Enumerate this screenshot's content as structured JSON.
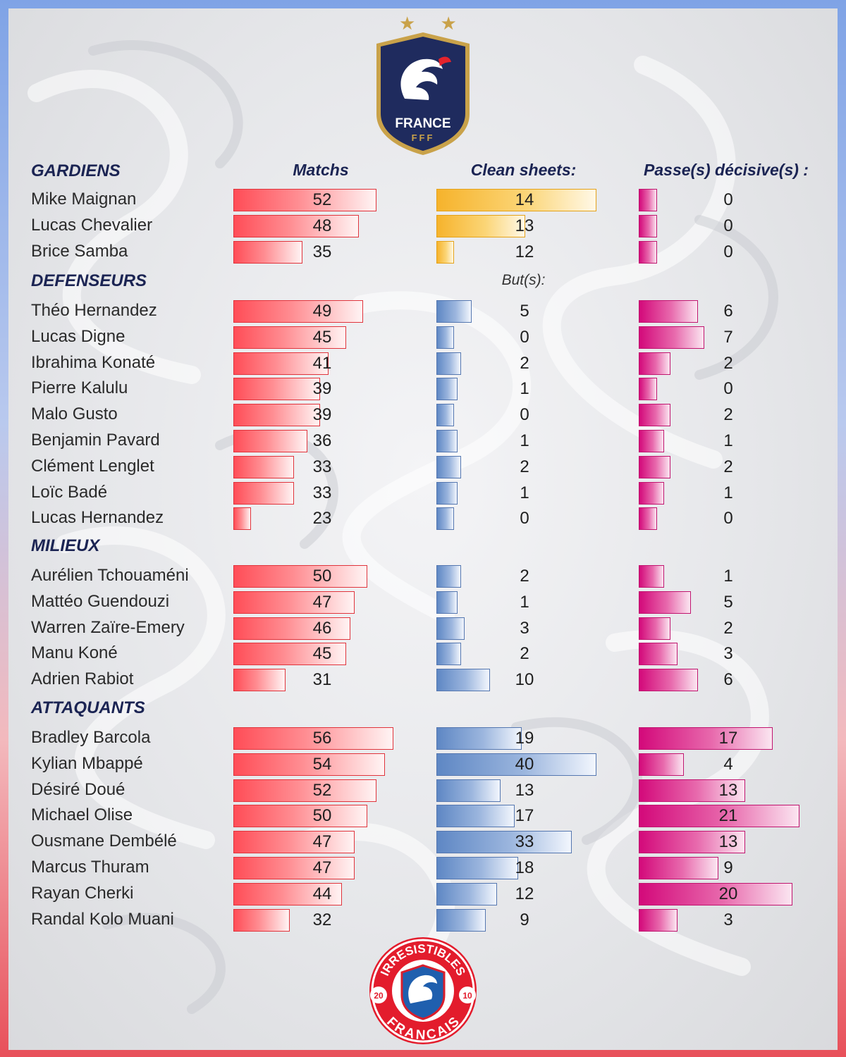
{
  "branding": {
    "top_logo_text": "FRANCE",
    "top_logo_sub": "FFF",
    "bottom_logo_top": "IRRESISTIBLES",
    "bottom_logo_bottom": "FRANCAIS",
    "bottom_logo_year_left": "20",
    "bottom_logo_year_right": "10",
    "stars": "★ ★"
  },
  "colors": {
    "matches": "#ff4d57",
    "clean_sheets": "#f6b32c",
    "goals": "#5e87c4",
    "assists": "#d3097a"
  },
  "chart_data": {
    "type": "table",
    "headers": {
      "matches": "Matchs",
      "clean_sheets": "Clean sheets:",
      "goals": "But(s):",
      "assists": "Passe(s) décisive(s) :"
    },
    "sections": [
      {
        "title": "GARDIENS",
        "stat2": "clean_sheets",
        "players": [
          {
            "name": "Mike Maignan",
            "matches": 52,
            "stat2": 14,
            "assists": 0
          },
          {
            "name": "Lucas Chevalier",
            "matches": 48,
            "stat2": 13,
            "assists": 0
          },
          {
            "name": "Brice Samba",
            "matches": 35,
            "stat2": 12,
            "assists": 0
          }
        ]
      },
      {
        "title": "DEFENSEURS",
        "stat2": "goals",
        "players": [
          {
            "name": "Théo Hernandez",
            "matches": 49,
            "stat2": 5,
            "assists": 6
          },
          {
            "name": "Lucas Digne",
            "matches": 45,
            "stat2": 0,
            "assists": 7
          },
          {
            "name": "Ibrahima Konaté",
            "matches": 41,
            "stat2": 2,
            "assists": 2
          },
          {
            "name": "Pierre Kalulu",
            "matches": 39,
            "stat2": 1,
            "assists": 0
          },
          {
            "name": "Malo Gusto",
            "matches": 39,
            "stat2": 0,
            "assists": 2
          },
          {
            "name": "Benjamin Pavard",
            "matches": 36,
            "stat2": 1,
            "assists": 1
          },
          {
            "name": "Clément Lenglet",
            "matches": 33,
            "stat2": 2,
            "assists": 2
          },
          {
            "name": "Loïc Badé",
            "matches": 33,
            "stat2": 1,
            "assists": 1
          },
          {
            "name": "Lucas Hernandez",
            "matches": 23,
            "stat2": 0,
            "assists": 0
          }
        ]
      },
      {
        "title": "MILIEUX",
        "stat2": "goals",
        "players": [
          {
            "name": "Aurélien Tchouaméni",
            "matches": 50,
            "stat2": 2,
            "assists": 1
          },
          {
            "name": "Mattéo Guendouzi",
            "matches": 47,
            "stat2": 1,
            "assists": 5
          },
          {
            "name": "Warren Zaïre-Emery",
            "matches": 46,
            "stat2": 3,
            "assists": 2
          },
          {
            "name": "Manu Koné",
            "matches": 45,
            "stat2": 2,
            "assists": 3
          },
          {
            "name": "Adrien Rabiot",
            "matches": 31,
            "stat2": 10,
            "assists": 6
          }
        ]
      },
      {
        "title": "ATTAQUANTS",
        "stat2": "goals",
        "players": [
          {
            "name": "Bradley Barcola",
            "matches": 56,
            "stat2": 19,
            "assists": 17
          },
          {
            "name": "Kylian Mbappé",
            "matches": 54,
            "stat2": 40,
            "assists": 4
          },
          {
            "name": "Désiré Doué",
            "matches": 52,
            "stat2": 13,
            "assists": 13
          },
          {
            "name": "Michael Olise",
            "matches": 50,
            "stat2": 17,
            "assists": 21
          },
          {
            "name": "Ousmane Dembélé",
            "matches": 47,
            "stat2": 33,
            "assists": 13
          },
          {
            "name": "Marcus Thuram",
            "matches": 47,
            "stat2": 18,
            "assists": 9
          },
          {
            "name": "Rayan Cherki",
            "matches": 44,
            "stat2": 12,
            "assists": 20
          },
          {
            "name": "Randal Kolo Muani",
            "matches": 32,
            "stat2": 9,
            "assists": 3
          }
        ]
      }
    ]
  }
}
